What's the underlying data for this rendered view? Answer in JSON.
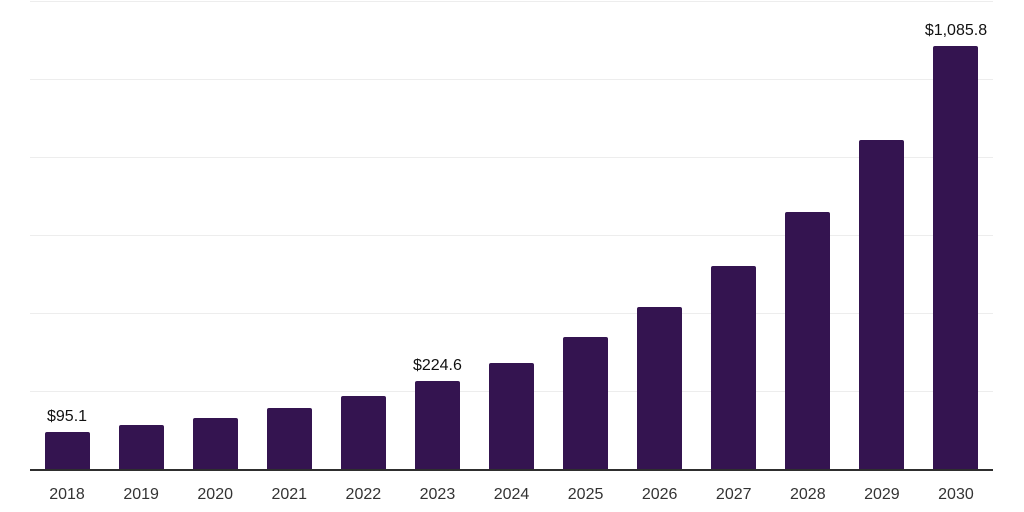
{
  "chart_data": {
    "type": "bar",
    "title": "",
    "xlabel": "",
    "ylabel": "",
    "categories": [
      "2018",
      "2019",
      "2020",
      "2021",
      "2022",
      "2023",
      "2024",
      "2025",
      "2026",
      "2027",
      "2028",
      "2029",
      "2030"
    ],
    "values": [
      95.1,
      112.6,
      130.6,
      157.0,
      186.9,
      224.6,
      271.4,
      337.9,
      416.4,
      520.4,
      659.7,
      844.8,
      1085.8
    ],
    "value_labels": [
      "$95.1",
      null,
      null,
      null,
      null,
      "$224.6",
      null,
      null,
      null,
      null,
      null,
      null,
      "$1,085.8"
    ],
    "ylim": [
      0,
      1200
    ],
    "y_grid_step": 200,
    "grid": true,
    "y_tick_labels_shown": false,
    "legend": "none",
    "colors": {
      "bar": "#341450",
      "axis": "#2e2e2e",
      "gridline": "#ededed",
      "x_label_text": "#333333",
      "value_label_text": "#111111",
      "background": "#ffffff"
    }
  }
}
